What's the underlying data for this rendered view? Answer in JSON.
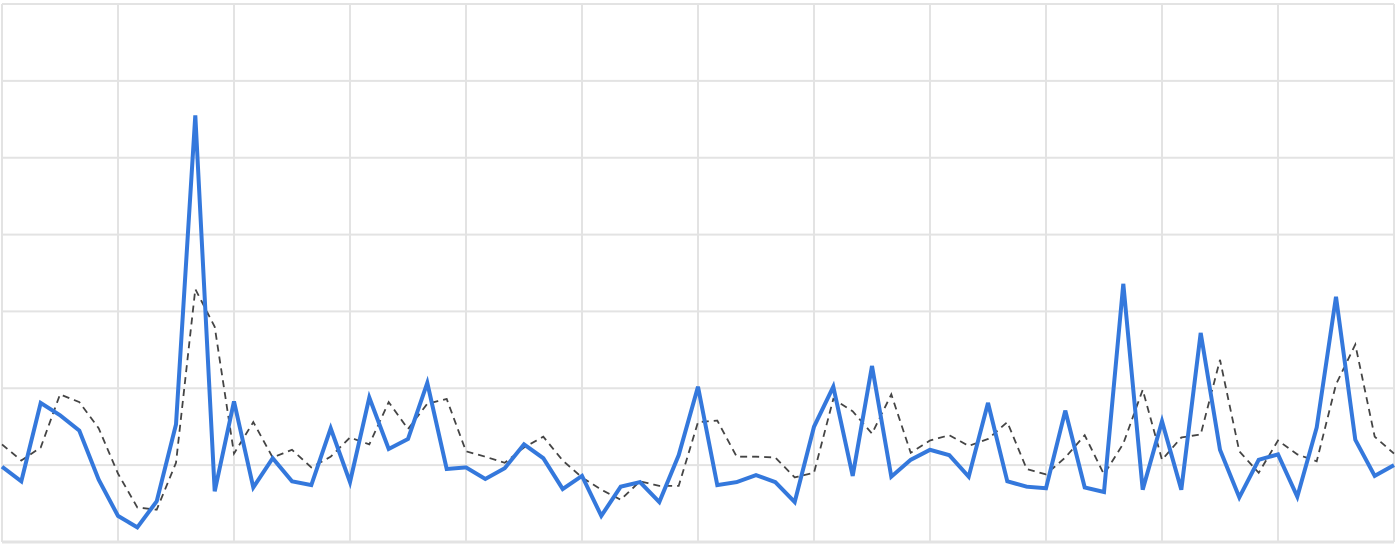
{
  "chart_data": {
    "type": "line",
    "grid": true,
    "title": "",
    "xlabel": "",
    "ylabel": "",
    "x_count": 73,
    "ylim": [
      0,
      7
    ],
    "series": [
      {
        "style": "solid",
        "color": "#3478dc",
        "values": [
          0.98,
          0.79,
          1.81,
          1.65,
          1.45,
          0.81,
          0.34,
          0.19,
          0.53,
          1.53,
          5.55,
          0.66,
          1.83,
          0.71,
          1.09,
          0.79,
          0.74,
          1.48,
          0.78,
          1.88,
          1.21,
          1.34,
          2.07,
          0.95,
          0.97,
          0.82,
          0.96,
          1.27,
          1.09,
          0.69,
          0.86,
          0.34,
          0.72,
          0.78,
          0.52,
          1.13,
          2.02,
          0.74,
          0.78,
          0.87,
          0.78,
          0.52,
          1.5,
          2.02,
          0.86,
          2.29,
          0.85,
          1.07,
          1.2,
          1.13,
          0.85,
          1.81,
          0.79,
          0.72,
          0.7,
          1.71,
          0.71,
          0.65,
          3.36,
          0.68,
          1.57,
          0.68,
          2.72,
          1.2,
          0.58,
          1.07,
          1.14,
          0.59,
          1.49,
          3.19,
          1.33,
          0.86,
          1.0
        ]
      },
      {
        "style": "dashed",
        "color": "#444444",
        "values": [
          1.27,
          1.06,
          1.23,
          1.92,
          1.82,
          1.48,
          0.89,
          0.45,
          0.42,
          1.03,
          3.29,
          2.8,
          1.15,
          1.56,
          1.1,
          1.2,
          0.97,
          1.11,
          1.36,
          1.27,
          1.82,
          1.47,
          1.8,
          1.86,
          1.18,
          1.11,
          1.03,
          1.23,
          1.37,
          1.06,
          0.84,
          0.68,
          0.55,
          0.79,
          0.73,
          0.73,
          1.56,
          1.58,
          1.11,
          1.11,
          1.1,
          0.84,
          0.9,
          1.86,
          1.7,
          1.41,
          1.92,
          1.16,
          1.32,
          1.39,
          1.25,
          1.34,
          1.56,
          0.95,
          0.88,
          1.1,
          1.39,
          0.88,
          1.28,
          1.98,
          1.07,
          1.36,
          1.4,
          2.37,
          1.18,
          0.9,
          1.32,
          1.14,
          1.05,
          2.05,
          2.57,
          1.37,
          1.15
        ]
      }
    ]
  }
}
